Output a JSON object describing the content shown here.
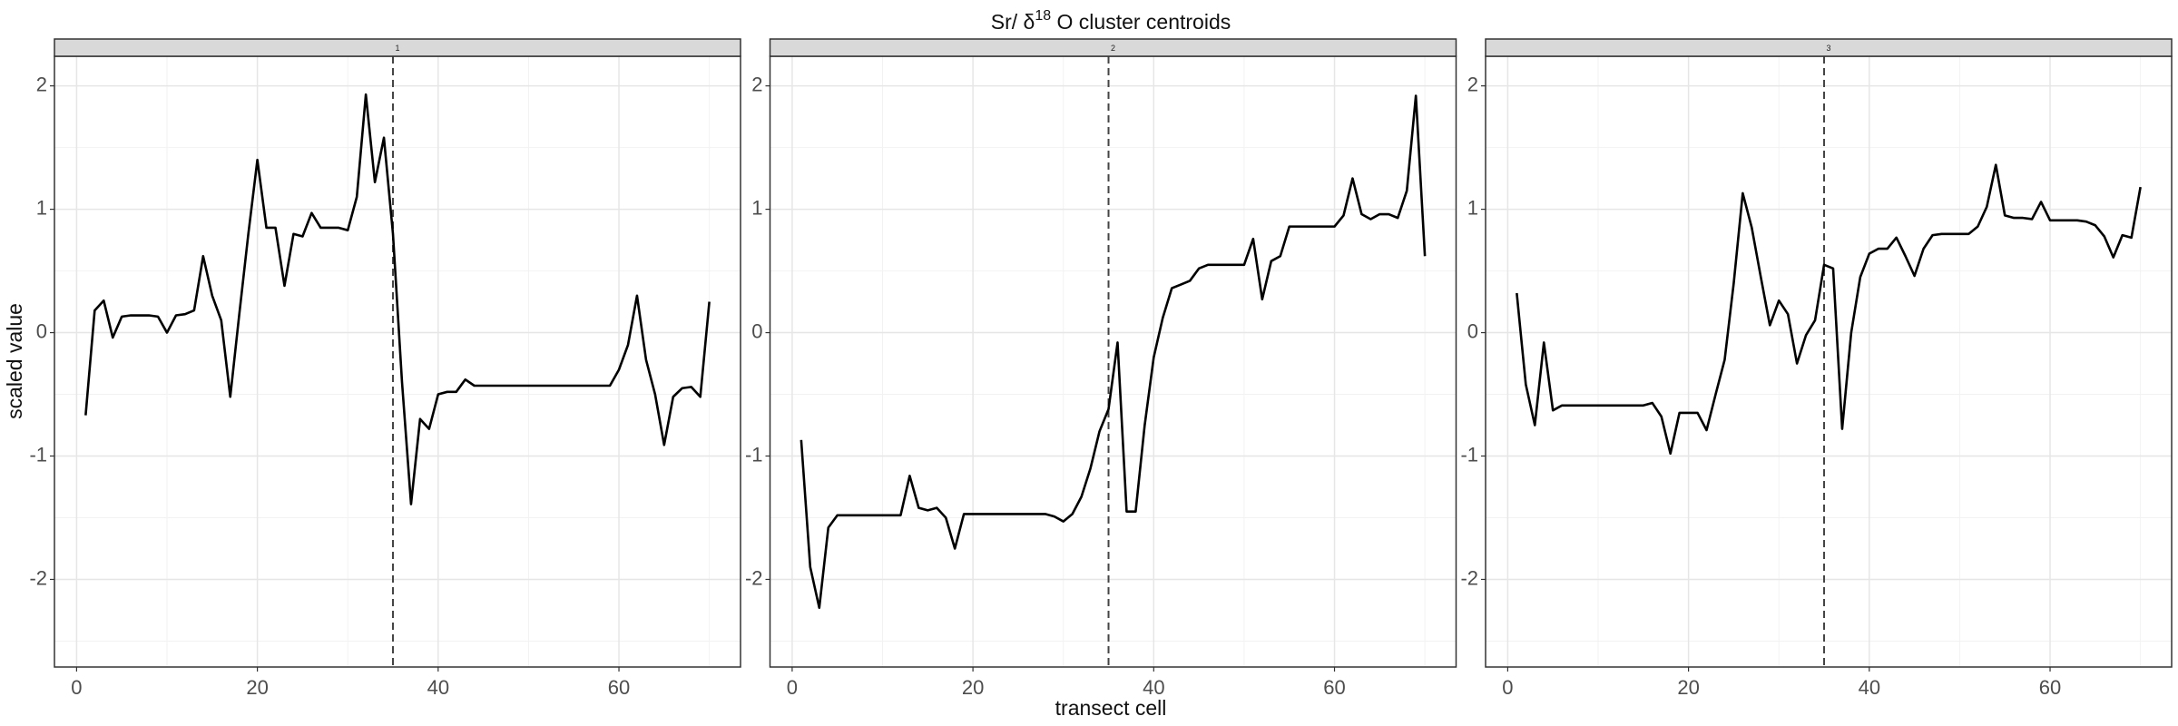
{
  "title": {
    "prefix": "Sr/ δ",
    "superscript": "18",
    "suffix": " O cluster centroids"
  },
  "xlabel": "transect cell",
  "ylabel": "scaled value",
  "chart_data": [
    {
      "type": "line",
      "strip": "1",
      "color": "#000000",
      "vline": 35,
      "x": [
        1,
        2,
        3,
        4,
        5,
        6,
        7,
        8,
        9,
        10,
        11,
        12,
        13,
        14,
        15,
        16,
        17,
        18,
        19,
        20,
        21,
        22,
        23,
        24,
        25,
        26,
        27,
        28,
        29,
        30,
        31,
        32,
        33,
        34,
        35,
        36,
        37,
        38,
        39,
        40,
        41,
        42,
        43,
        44,
        45,
        46,
        47,
        48,
        49,
        50,
        51,
        52,
        53,
        54,
        55,
        56,
        57,
        58,
        59,
        60,
        61,
        62,
        63,
        64,
        65,
        66,
        67,
        68,
        69,
        70
      ],
      "values": [
        -0.67,
        0.18,
        0.26,
        -0.04,
        0.13,
        0.14,
        0.14,
        0.14,
        0.13,
        0.0,
        0.14,
        0.15,
        0.18,
        0.62,
        0.3,
        0.1,
        -0.52,
        0.15,
        0.8,
        1.4,
        0.85,
        0.85,
        0.38,
        0.8,
        0.78,
        0.97,
        0.85,
        0.85,
        0.85,
        0.83,
        1.1,
        1.93,
        1.22,
        1.58,
        0.8,
        -0.4,
        -1.39,
        -0.7,
        -0.78,
        -0.5,
        -0.48,
        -0.48,
        -0.38,
        -0.43,
        -0.43,
        -0.43,
        -0.43,
        -0.43,
        -0.43,
        -0.43,
        -0.43,
        -0.43,
        -0.43,
        -0.43,
        -0.43,
        -0.43,
        -0.43,
        -0.43,
        -0.43,
        -0.3,
        -0.1,
        0.3,
        -0.22,
        -0.5,
        -0.91,
        -0.52,
        -0.45,
        -0.44,
        -0.52,
        0.25
      ],
      "xlim": [
        -2.45,
        73.45
      ],
      "ylim": [
        -2.71,
        2.24
      ],
      "xticks": [
        0,
        20,
        40,
        60
      ],
      "yticks": [
        -2,
        -1,
        0,
        1,
        2
      ],
      "xminor": [
        10,
        30,
        50,
        70
      ],
      "yminor": [
        -2.5,
        -1.5,
        -0.5,
        0.5,
        1.5
      ],
      "grid": true
    },
    {
      "type": "line",
      "strip": "2",
      "color": "#000000",
      "vline": 35,
      "x": [
        1,
        2,
        3,
        4,
        5,
        6,
        7,
        8,
        9,
        10,
        11,
        12,
        13,
        14,
        15,
        16,
        17,
        18,
        19,
        20,
        21,
        22,
        23,
        24,
        25,
        26,
        27,
        28,
        29,
        30,
        31,
        32,
        33,
        34,
        35,
        36,
        37,
        38,
        39,
        40,
        41,
        42,
        43,
        44,
        45,
        46,
        47,
        48,
        49,
        50,
        51,
        52,
        53,
        54,
        55,
        56,
        57,
        58,
        59,
        60,
        61,
        62,
        63,
        64,
        65,
        66,
        67,
        68,
        69,
        70
      ],
      "values": [
        -0.87,
        -1.9,
        -2.23,
        -1.58,
        -1.48,
        -1.48,
        -1.48,
        -1.48,
        -1.48,
        -1.48,
        -1.48,
        -1.48,
        -1.16,
        -1.42,
        -1.44,
        -1.42,
        -1.5,
        -1.75,
        -1.47,
        -1.47,
        -1.47,
        -1.47,
        -1.47,
        -1.47,
        -1.47,
        -1.47,
        -1.47,
        -1.47,
        -1.49,
        -1.53,
        -1.47,
        -1.33,
        -1.1,
        -0.8,
        -0.62,
        -0.08,
        -1.45,
        -1.45,
        -0.75,
        -0.2,
        0.12,
        0.36,
        0.39,
        0.42,
        0.52,
        0.55,
        0.55,
        0.55,
        0.55,
        0.55,
        0.76,
        0.27,
        0.58,
        0.62,
        0.86,
        0.86,
        0.86,
        0.86,
        0.86,
        0.86,
        0.95,
        1.25,
        0.96,
        0.92,
        0.96,
        0.96,
        0.93,
        1.15,
        1.92,
        0.62
      ],
      "xlim": [
        -2.45,
        73.45
      ],
      "ylim": [
        -2.71,
        2.24
      ],
      "xticks": [
        0,
        20,
        40,
        60
      ],
      "yticks": [
        -2,
        -1,
        0,
        1,
        2
      ],
      "xminor": [
        10,
        30,
        50,
        70
      ],
      "yminor": [
        -2.5,
        -1.5,
        -0.5,
        0.5,
        1.5
      ],
      "grid": true
    },
    {
      "type": "line",
      "strip": "3",
      "color": "#000000",
      "vline": 35,
      "x": [
        1,
        2,
        3,
        4,
        5,
        6,
        7,
        8,
        9,
        10,
        11,
        12,
        13,
        14,
        15,
        16,
        17,
        18,
        19,
        20,
        21,
        22,
        23,
        24,
        25,
        26,
        27,
        28,
        29,
        30,
        31,
        32,
        33,
        34,
        35,
        36,
        37,
        38,
        39,
        40,
        41,
        42,
        43,
        44,
        45,
        46,
        47,
        48,
        49,
        50,
        51,
        52,
        53,
        54,
        55,
        56,
        57,
        58,
        59,
        60,
        61,
        62,
        63,
        64,
        65,
        66,
        67,
        68,
        69,
        70
      ],
      "values": [
        0.32,
        -0.42,
        -0.75,
        -0.08,
        -0.63,
        -0.59,
        -0.59,
        -0.59,
        -0.59,
        -0.59,
        -0.59,
        -0.59,
        -0.59,
        -0.59,
        -0.59,
        -0.57,
        -0.68,
        -0.98,
        -0.65,
        -0.65,
        -0.65,
        -0.79,
        -0.5,
        -0.22,
        0.4,
        1.13,
        0.85,
        0.45,
        0.06,
        0.26,
        0.15,
        -0.25,
        -0.02,
        0.1,
        0.55,
        0.52,
        -0.78,
        0.0,
        0.45,
        0.64,
        0.68,
        0.68,
        0.77,
        0.62,
        0.46,
        0.68,
        0.79,
        0.8,
        0.8,
        0.8,
        0.8,
        0.86,
        1.02,
        1.36,
        0.95,
        0.93,
        0.93,
        0.92,
        1.06,
        0.91,
        0.91,
        0.91,
        0.91,
        0.9,
        0.87,
        0.78,
        0.61,
        0.79,
        0.77,
        1.18
      ],
      "xlim": [
        -2.45,
        73.45
      ],
      "ylim": [
        -2.71,
        2.24
      ],
      "xticks": [
        0,
        20,
        40,
        60
      ],
      "yticks": [
        -2,
        -1,
        0,
        1,
        2
      ],
      "xminor": [
        10,
        30,
        50,
        70
      ],
      "yminor": [
        -2.5,
        -1.5,
        -0.5,
        0.5,
        1.5
      ],
      "grid": true
    }
  ]
}
